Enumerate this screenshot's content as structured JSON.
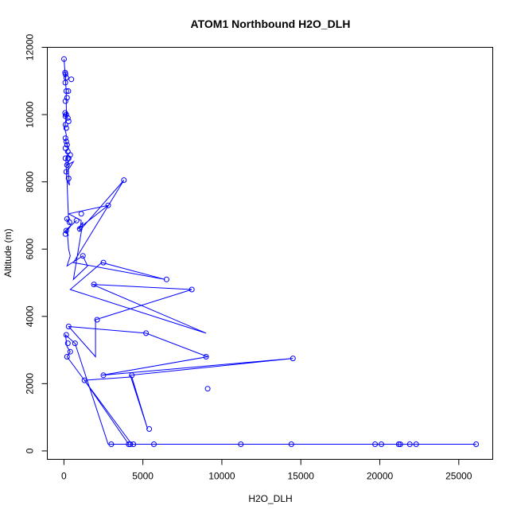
{
  "chart_data": {
    "type": "scatter",
    "title": "ATOM1 Northbound H2O_DLH",
    "xlabel": "H2O_DLH",
    "ylabel": "Altitude (m)",
    "xlim": [
      -1050,
      27150
    ],
    "ylim": [
      -250,
      12000
    ],
    "x_ticks": [
      0,
      5000,
      10000,
      15000,
      20000,
      25000
    ],
    "y_ticks": [
      0,
      2000,
      4000,
      6000,
      8000,
      10000,
      12000
    ],
    "grid": false,
    "legend": "none",
    "colors": {
      "series": "#0000ff"
    },
    "series": [
      {
        "x": [
          10,
          80,
          90,
          120,
          100,
          90,
          150,
          150,
          160,
          100,
          150,
          200,
          50,
          150,
          120,
          300,
          150,
          400,
          200,
          600,
          200,
          150,
          350,
          200,
          120,
          200,
          300,
          150,
          450,
          120,
          300,
          100,
          800,
          200,
          300,
          400,
          200,
          1200,
          1500,
          600,
          1200,
          900,
          2800,
          300,
          1100,
          1000,
          3800,
          600,
          6400,
          2400,
          400,
          9000,
          1800,
          8100,
          2000,
          2000,
          300,
          5200,
          9100,
          2400,
          14500,
          4200,
          5300,
          4300,
          1300,
          4100,
          14400,
          20100,
          19800,
          11200,
          21200,
          22300,
          26100,
          21900,
          21300,
          4200,
          4400,
          5700,
          3000,
          2800,
          700,
          100,
          200,
          400,
          200,
          4300
        ],
        "y": [
          11650,
          11200,
          11100,
          11250,
          10950,
          11050,
          10700,
          10400,
          10050,
          9950,
          10000,
          10100,
          9600,
          9400,
          9200,
          9000,
          8900,
          8700,
          8500,
          8600,
          8300,
          8100,
          7900,
          8800,
          8700,
          8000,
          6800,
          6900,
          6700,
          6500,
          6400,
          6550,
          6850,
          6600,
          6000,
          5800,
          5500,
          5800,
          5500,
          5100,
          6800,
          6600,
          7300,
          7050,
          6850,
          6550,
          8050,
          5600,
          5100,
          5600,
          4800,
          3500,
          4950,
          4800,
          3900,
          2800,
          3700,
          3500,
          2800,
          2250,
          2750,
          2250,
          650,
          2200,
          2100,
          200,
          200,
          200,
          200,
          200,
          200,
          200,
          200,
          200,
          200,
          200,
          200,
          200,
          200,
          200,
          3200,
          3450,
          3100,
          2950,
          2800,
          200
        ],
        "points": [
          [
            10,
            11650
          ],
          [
            80,
            11250
          ],
          [
            100,
            11200
          ],
          [
            150,
            11100
          ],
          [
            470,
            11050
          ],
          [
            90,
            10950
          ],
          [
            150,
            10700
          ],
          [
            280,
            10700
          ],
          [
            100,
            10400
          ],
          [
            200,
            10500
          ],
          [
            80,
            10050
          ],
          [
            150,
            10000
          ],
          [
            100,
            9950
          ],
          [
            250,
            9900
          ],
          [
            100,
            9700
          ],
          [
            150,
            9600
          ],
          [
            300,
            9800
          ],
          [
            100,
            9300
          ],
          [
            150,
            9200
          ],
          [
            200,
            9100
          ],
          [
            100,
            9000
          ],
          [
            250,
            8900
          ],
          [
            400,
            8800
          ],
          [
            100,
            8700
          ],
          [
            300,
            8700
          ],
          [
            200,
            8500
          ],
          [
            150,
            8300
          ],
          [
            300,
            8100
          ],
          [
            3800,
            8050
          ],
          [
            2800,
            7300
          ],
          [
            1100,
            7050
          ],
          [
            800,
            6850
          ],
          [
            200,
            6900
          ],
          [
            350,
            6800
          ],
          [
            1000,
            6600
          ],
          [
            150,
            6550
          ],
          [
            100,
            6450
          ],
          [
            1200,
            5800
          ],
          [
            2500,
            5600
          ],
          [
            6500,
            5100
          ],
          [
            8100,
            4800
          ],
          [
            1900,
            4950
          ],
          [
            2100,
            3900
          ],
          [
            5200,
            3500
          ],
          [
            14500,
            2750
          ],
          [
            9000,
            2800
          ],
          [
            300,
            3700
          ],
          [
            150,
            3450
          ],
          [
            700,
            3200
          ],
          [
            250,
            3200
          ],
          [
            400,
            2950
          ],
          [
            200,
            2800
          ],
          [
            9100,
            1850
          ],
          [
            2500,
            2250
          ],
          [
            4300,
            2250
          ],
          [
            1300,
            2100
          ],
          [
            5400,
            650
          ],
          [
            3000,
            200
          ],
          [
            4100,
            200
          ],
          [
            4200,
            200
          ],
          [
            4400,
            200
          ],
          [
            5700,
            200
          ],
          [
            11200,
            200
          ],
          [
            14400,
            200
          ],
          [
            19700,
            200
          ],
          [
            20100,
            200
          ],
          [
            21200,
            200
          ],
          [
            21300,
            200
          ],
          [
            21900,
            200
          ],
          [
            22300,
            200
          ],
          [
            26100,
            200
          ]
        ]
      }
    ]
  }
}
